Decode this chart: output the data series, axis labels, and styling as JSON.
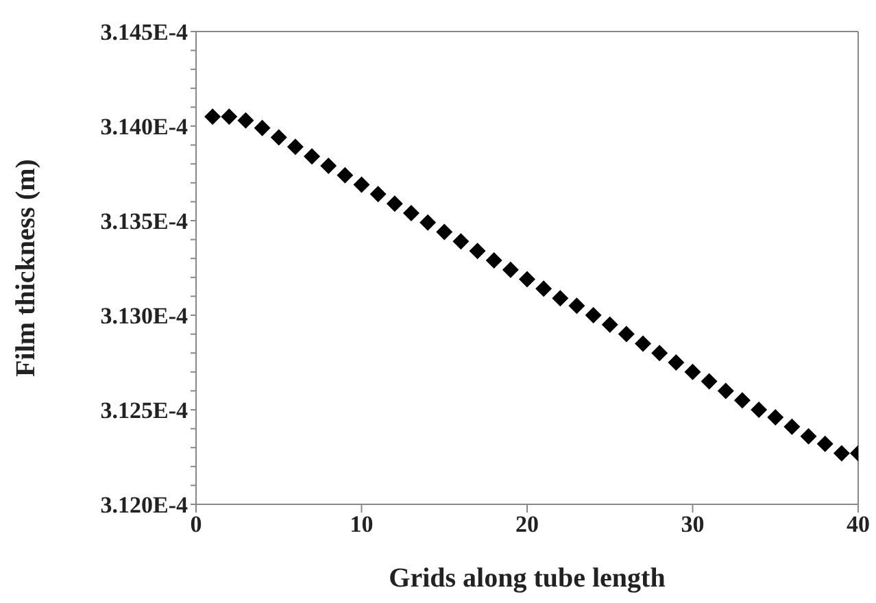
{
  "chart_data": {
    "type": "scatter",
    "xlabel": "Grids along tube length",
    "ylabel": "Film  thickness (m)",
    "x": [
      1,
      2,
      3,
      4,
      5,
      6,
      7,
      8,
      9,
      10,
      11,
      12,
      13,
      14,
      15,
      16,
      17,
      18,
      19,
      20,
      21,
      22,
      23,
      24,
      25,
      26,
      27,
      28,
      29,
      30,
      31,
      32,
      33,
      34,
      35,
      36,
      37,
      38,
      39,
      40
    ],
    "series": [
      {
        "color": "#000000",
        "values": [
          0.00031405,
          0.00031405,
          0.00031403,
          0.00031399,
          0.00031394,
          0.00031389,
          0.00031384,
          0.00031379,
          0.00031374,
          0.00031369,
          0.00031364,
          0.00031359,
          0.00031354,
          0.00031349,
          0.00031344,
          0.00031339,
          0.00031334,
          0.00031329,
          0.00031324,
          0.00031319,
          0.00031314,
          0.00031309,
          0.00031305,
          0.000313,
          0.00031295,
          0.0003129,
          0.00031285,
          0.0003128,
          0.00031275,
          0.0003127,
          0.00031265,
          0.0003126,
          0.00031255,
          0.0003125,
          0.00031246,
          0.00031241,
          0.00031236,
          0.00031232,
          0.00031227,
          0.00031227
        ]
      }
    ],
    "xlim": [
      0,
      40
    ],
    "xticks": [
      0,
      10,
      20,
      30,
      40
    ],
    "ylim": [
      0.000312,
      0.0003145
    ],
    "yticks": [
      {
        "value": 0.000312,
        "label": "3.120E-4"
      },
      {
        "value": 0.0003121,
        "label": null
      },
      {
        "value": 0.0003122,
        "label": null
      },
      {
        "value": 0.0003123,
        "label": null
      },
      {
        "value": 0.0003124,
        "label": null
      },
      {
        "value": 0.0003125,
        "label": "3.125E-4"
      },
      {
        "value": 0.0003126,
        "label": null
      },
      {
        "value": 0.0003127,
        "label": null
      },
      {
        "value": 0.0003128,
        "label": null
      },
      {
        "value": 0.0003129,
        "label": null
      },
      {
        "value": 0.000313,
        "label": "3.130E-4"
      },
      {
        "value": 0.0003131,
        "label": null
      },
      {
        "value": 0.0003132,
        "label": null
      },
      {
        "value": 0.0003133,
        "label": null
      },
      {
        "value": 0.0003134,
        "label": null
      },
      {
        "value": 0.0003135,
        "label": "3.135E-4"
      },
      {
        "value": 0.0003136,
        "label": null
      },
      {
        "value": 0.0003137,
        "label": null
      },
      {
        "value": 0.0003138,
        "label": null
      },
      {
        "value": 0.0003139,
        "label": null
      },
      {
        "value": 0.000314,
        "label": "3.140E-4"
      },
      {
        "value": 0.0003141,
        "label": null
      },
      {
        "value": 0.0003142,
        "label": null
      },
      {
        "value": 0.0003143,
        "label": null
      },
      {
        "value": 0.0003144,
        "label": null
      },
      {
        "value": 0.0003145,
        "label": "3.145E-4"
      }
    ],
    "grid": false,
    "legend": false,
    "marker": "diamond"
  }
}
